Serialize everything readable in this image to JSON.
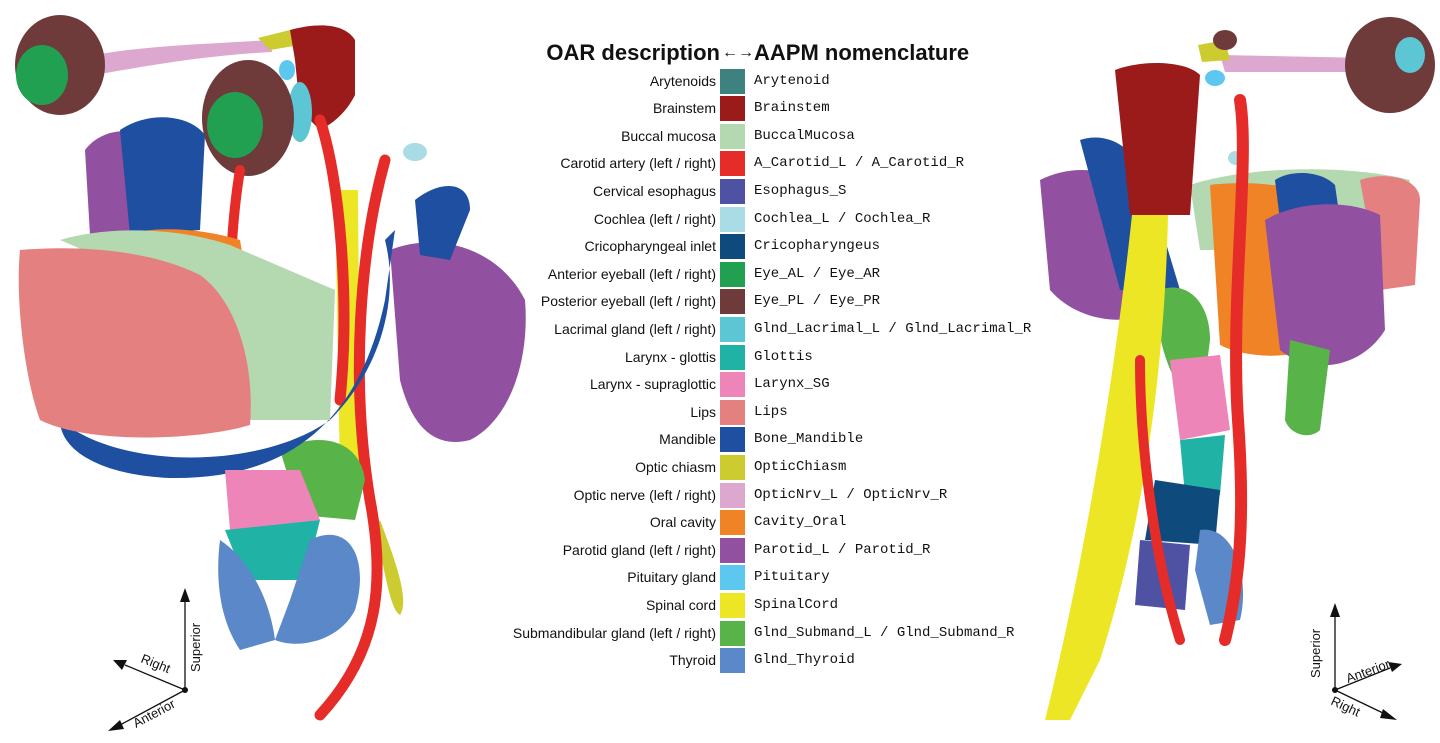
{
  "legend": {
    "header_left": "OAR description",
    "header_arrow": "←→",
    "header_right": "AAPM nomenclature",
    "rows": [
      {
        "desc": "Arytenoids",
        "code": "Arytenoid",
        "color": "#3e8280"
      },
      {
        "desc": "Brainstem",
        "code": "Brainstem",
        "color": "#9b1b1b"
      },
      {
        "desc": "Buccal mucosa",
        "code": "BuccalMucosa",
        "color": "#b4d8b0"
      },
      {
        "desc": "Carotid artery (left / right)",
        "code": "A_Carotid_L / A_Carotid_R",
        "color": "#e52c28"
      },
      {
        "desc": "Cervical esophagus",
        "code": "Esophagus_S",
        "color": "#4f52a2"
      },
      {
        "desc": "Cochlea (left / right)",
        "code": "Cochlea_L / Cochlea_R",
        "color": "#a9dce5"
      },
      {
        "desc": "Cricopharyngeal inlet",
        "code": "Cricopharyngeus",
        "color": "#0f4a7c"
      },
      {
        "desc": "Anterior eyeball (left / right)",
        "code": "Eye_AL / Eye_AR",
        "color": "#20a050"
      },
      {
        "desc": "Posterior eyeball (left / right)",
        "code": "Eye_PL / Eye_PR",
        "color": "#6e3a3a"
      },
      {
        "desc": "Lacrimal gland (left / right)",
        "code": "Glnd_Lacrimal_L / Glnd_Lacrimal_R",
        "color": "#5cc6d4"
      },
      {
        "desc": "Larynx - glottis",
        "code": "Glottis",
        "color": "#21b2a6"
      },
      {
        "desc": "Larynx - supraglottic",
        "code": "Larynx_SG",
        "color": "#ee85b8"
      },
      {
        "desc": "Lips",
        "code": "Lips",
        "color": "#e58080"
      },
      {
        "desc": "Mandible",
        "code": "Bone_Mandible",
        "color": "#1e4fa0"
      },
      {
        "desc": "Optic chiasm",
        "code": "OpticChiasm",
        "color": "#cccc30"
      },
      {
        "desc": "Optic nerve (left / right)",
        "code": "OpticNrv_L / OpticNrv_R",
        "color": "#dca8d0"
      },
      {
        "desc": "Oral cavity",
        "code": "Cavity_Oral",
        "color": "#ef8326"
      },
      {
        "desc": "Parotid gland (left / right)",
        "code": "Parotid_L / Parotid_R",
        "color": "#9150a0"
      },
      {
        "desc": "Pituitary gland",
        "code": "Pituitary",
        "color": "#5cc8ef"
      },
      {
        "desc": "Spinal cord",
        "code": "SpinalCord",
        "color": "#ece624"
      },
      {
        "desc": "Submandibular gland (left / right)",
        "code": "Glnd_Submand_L / Glnd_Submand_R",
        "color": "#58b448"
      },
      {
        "desc": "Thyroid",
        "code": "Glnd_Thyroid",
        "color": "#5a88c8"
      }
    ]
  },
  "left_axes": {
    "superior": "Superior",
    "right": "Right",
    "anterior": "Anterior"
  },
  "right_axes": {
    "superior": "Superior",
    "anterior": "Anterior",
    "right": "Right"
  }
}
